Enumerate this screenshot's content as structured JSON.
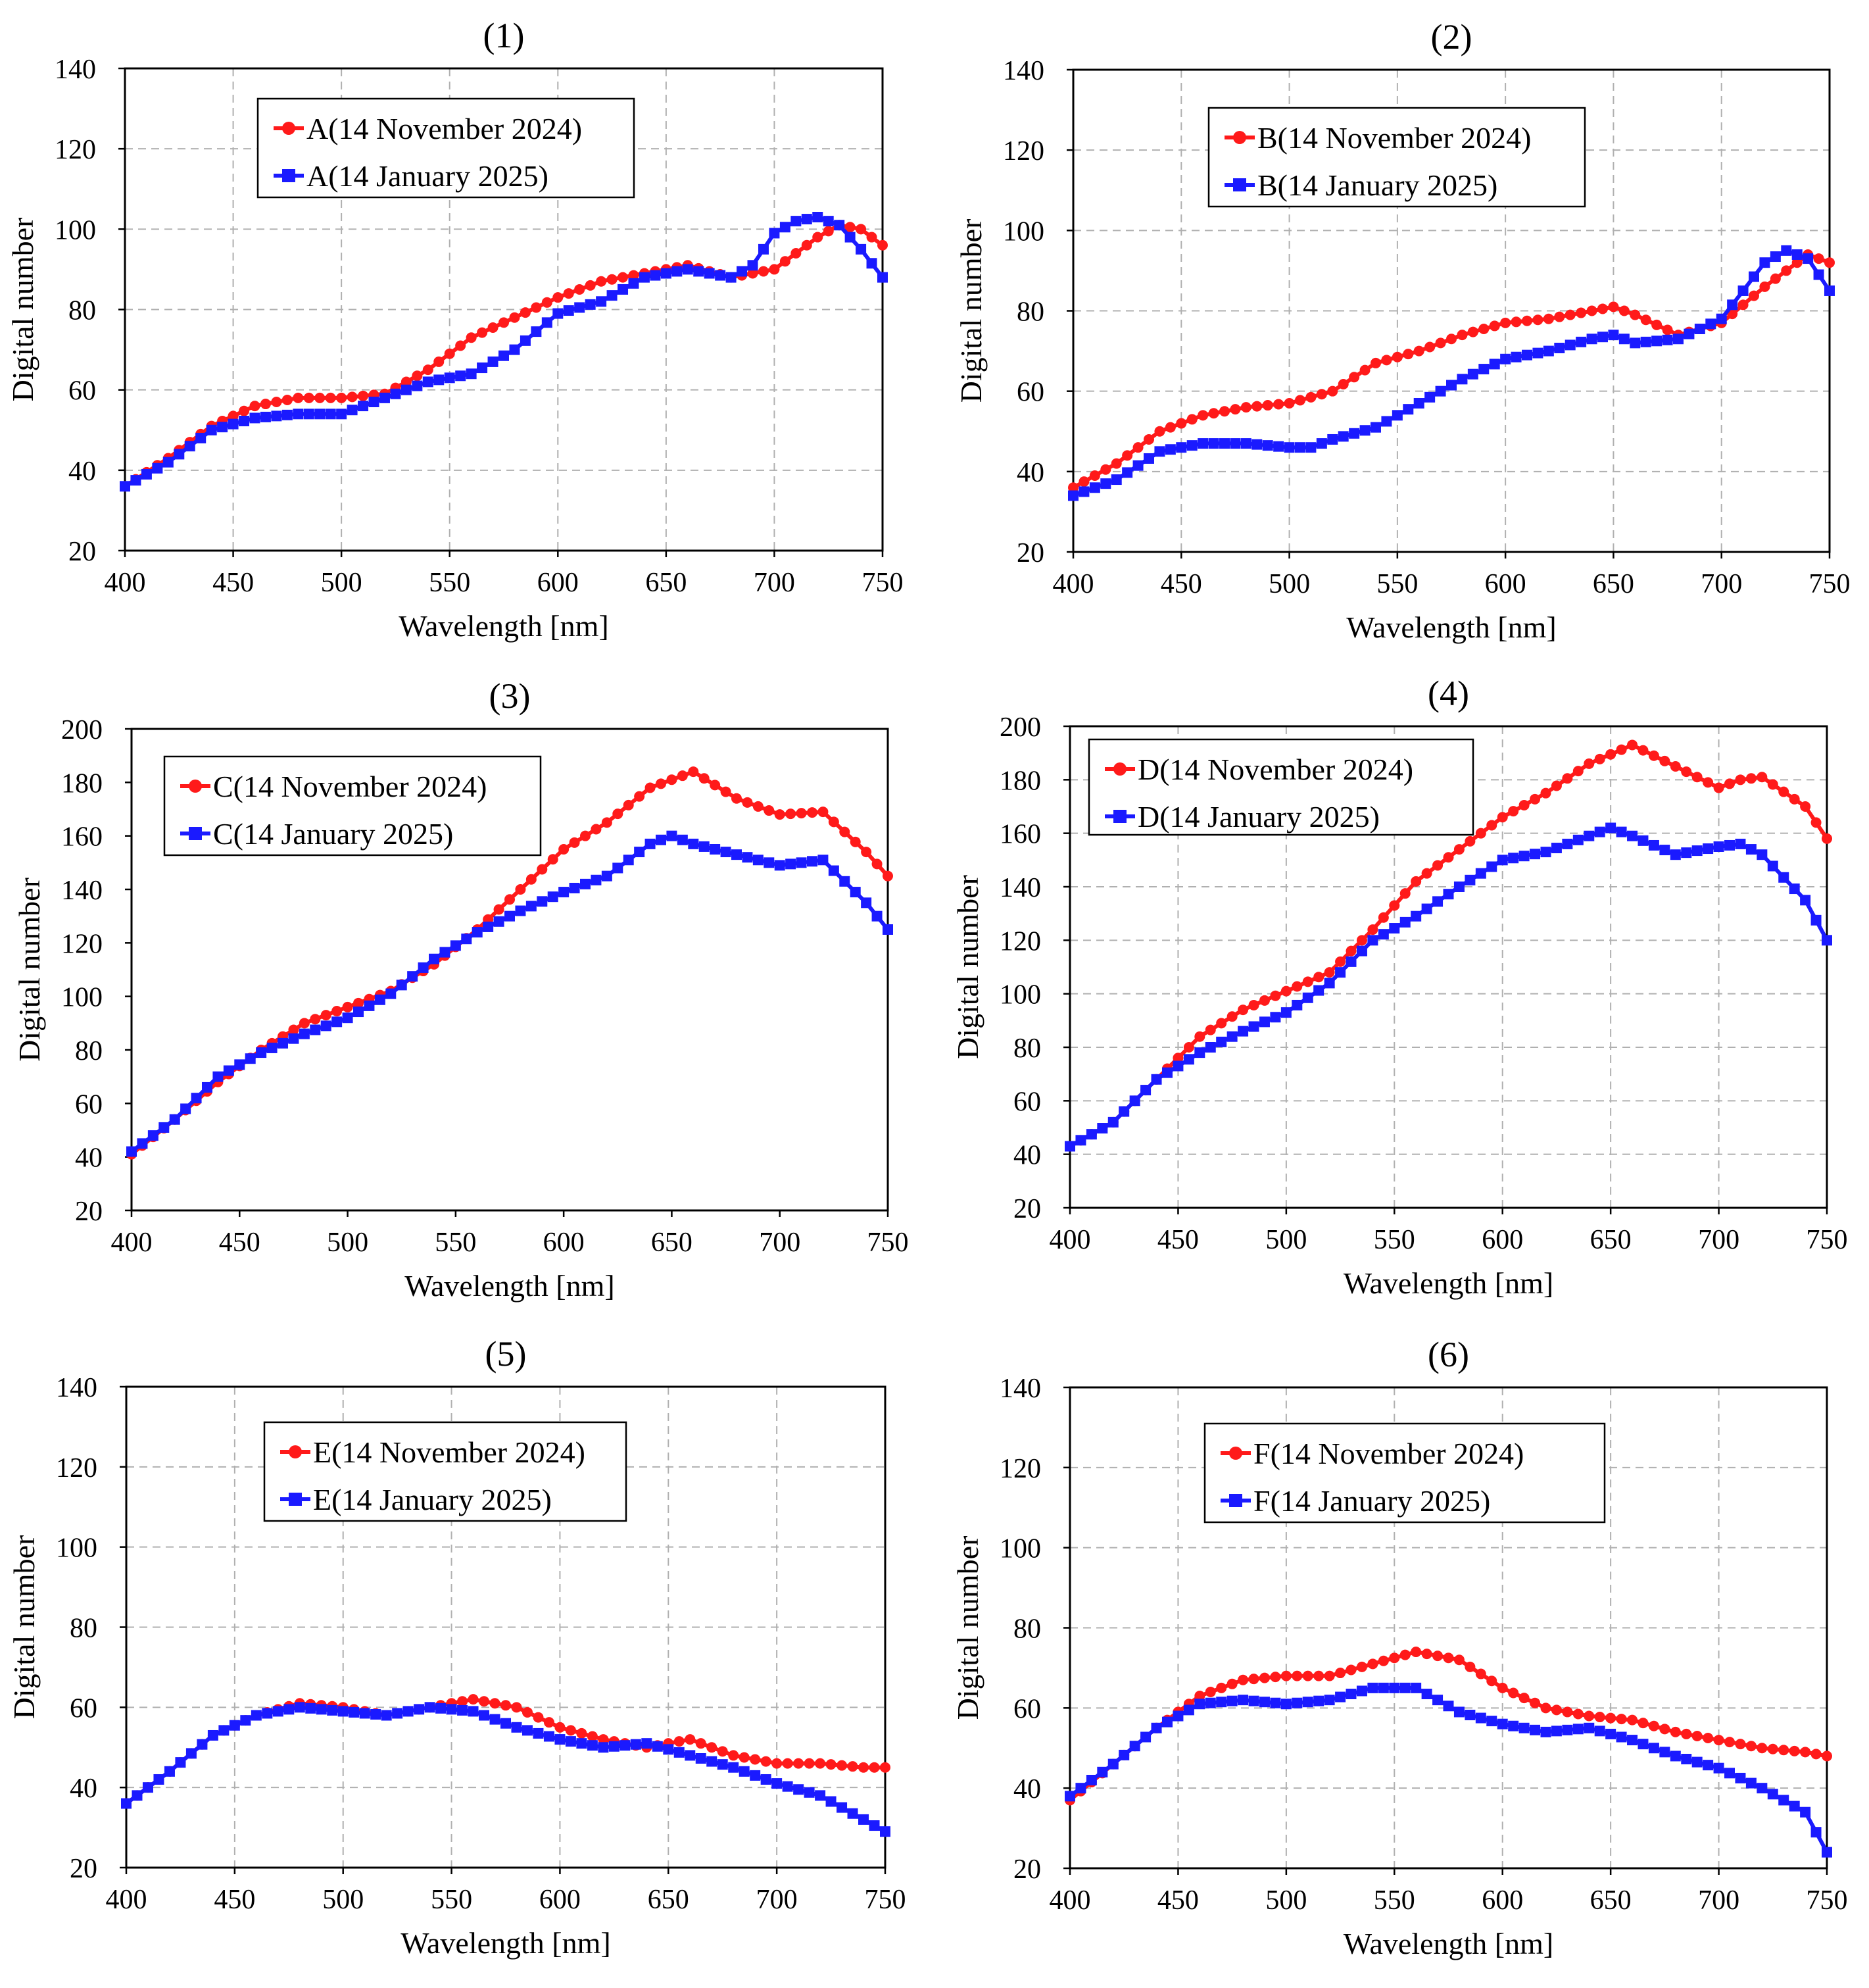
{
  "figure": {
    "description_x_unit": "nm",
    "series_names": [
      "14 November 2024",
      "14 January 2025"
    ]
  },
  "colors": {
    "november": "#ff1a1a",
    "january": "#1a1aff",
    "grid": "#b0b0b0"
  },
  "chart_data": [
    {
      "type": "line",
      "title": "(1)",
      "xlabel": "Wavelength [nm]",
      "ylabel": "Digital number",
      "xlim": [
        400,
        750
      ],
      "ylim": [
        20,
        140
      ],
      "xticks": [
        400,
        450,
        500,
        550,
        600,
        650,
        700,
        750
      ],
      "yticks": [
        20,
        40,
        60,
        80,
        100,
        120,
        140
      ],
      "grid": true,
      "legend_position": "top-left",
      "series": [
        {
          "name": "A(14 November 2024)",
          "marker": "circle",
          "color": "#ff1a1a",
          "x": [
            400,
            420,
            440,
            460,
            480,
            500,
            520,
            540,
            560,
            580,
            600,
            620,
            640,
            660,
            680,
            700,
            720,
            730,
            740,
            750
          ],
          "y": [
            36,
            43,
            51,
            56,
            58,
            58,
            59,
            65,
            73,
            78,
            83,
            87,
            89,
            91,
            88,
            90,
            98,
            101,
            100,
            96
          ]
        },
        {
          "name": "A(14 January 2025)",
          "marker": "square",
          "color": "#1a1aff",
          "x": [
            400,
            420,
            440,
            460,
            480,
            500,
            520,
            540,
            560,
            580,
            600,
            620,
            640,
            660,
            680,
            690,
            700,
            710,
            720,
            730,
            740,
            750
          ],
          "y": [
            36,
            42,
            50,
            53,
            54,
            54,
            58,
            62,
            64,
            70,
            79,
            82,
            88,
            90,
            88,
            91,
            99,
            102,
            103,
            101,
            95,
            88
          ]
        }
      ]
    },
    {
      "type": "line",
      "title": "(2)",
      "xlabel": "Wavelength [nm]",
      "ylabel": "Digital number",
      "xlim": [
        400,
        750
      ],
      "ylim": [
        20,
        140
      ],
      "xticks": [
        400,
        450,
        500,
        550,
        600,
        650,
        700,
        750
      ],
      "yticks": [
        20,
        40,
        60,
        80,
        100,
        120,
        140
      ],
      "grid": true,
      "legend_position": "top-center",
      "series": [
        {
          "name": "B(14 November 2024)",
          "marker": "circle",
          "color": "#ff1a1a",
          "x": [
            400,
            420,
            440,
            460,
            480,
            500,
            520,
            540,
            560,
            580,
            600,
            620,
            640,
            650,
            660,
            680,
            700,
            720,
            740,
            750
          ],
          "y": [
            36,
            42,
            50,
            54,
            56,
            57,
            60,
            67,
            70,
            74,
            77,
            78,
            80,
            81,
            79,
            74,
            77,
            86,
            94,
            92
          ]
        },
        {
          "name": "B(14 January 2025)",
          "marker": "square",
          "color": "#1a1aff",
          "x": [
            400,
            420,
            440,
            460,
            480,
            500,
            510,
            520,
            540,
            560,
            580,
            600,
            620,
            640,
            650,
            660,
            680,
            700,
            720,
            730,
            740,
            750
          ],
          "y": [
            34,
            38,
            45,
            47,
            47,
            46,
            46,
            48,
            51,
            57,
            63,
            68,
            70,
            73,
            74,
            72,
            73,
            78,
            92,
            95,
            93,
            85
          ]
        }
      ]
    },
    {
      "type": "line",
      "title": "(3)",
      "xlabel": "Wavelength [nm]",
      "ylabel": "Digital number",
      "xlim": [
        400,
        750
      ],
      "ylim": [
        20,
        200
      ],
      "xticks": [
        400,
        450,
        500,
        550,
        600,
        650,
        700,
        750
      ],
      "yticks": [
        20,
        40,
        60,
        80,
        100,
        120,
        140,
        160,
        180,
        200
      ],
      "grid": false,
      "legend_position": "top-left",
      "series": [
        {
          "name": "C(14 November 2024)",
          "marker": "circle",
          "color": "#ff1a1a",
          "x": [
            400,
            420,
            440,
            460,
            480,
            500,
            520,
            540,
            560,
            580,
            600,
            620,
            640,
            660,
            680,
            700,
            720,
            740,
            750
          ],
          "y": [
            41,
            54,
            68,
            80,
            90,
            96,
            102,
            112,
            125,
            140,
            155,
            165,
            178,
            184,
            174,
            168,
            169,
            154,
            145
          ]
        },
        {
          "name": "C(14 January 2025)",
          "marker": "square",
          "color": "#1a1aff",
          "x": [
            400,
            420,
            440,
            460,
            480,
            500,
            520,
            540,
            560,
            580,
            600,
            620,
            640,
            650,
            660,
            680,
            700,
            720,
            740,
            750
          ],
          "y": [
            42,
            54,
            70,
            79,
            86,
            92,
            101,
            114,
            124,
            132,
            139,
            145,
            157,
            160,
            157,
            153,
            149,
            151,
            135,
            125
          ]
        }
      ]
    },
    {
      "type": "line",
      "title": "(4)",
      "xlabel": "Wavelength [nm]",
      "ylabel": "Digital number",
      "xlim": [
        400,
        750
      ],
      "ylim": [
        20,
        200
      ],
      "xticks": [
        400,
        450,
        500,
        550,
        600,
        650,
        700,
        750
      ],
      "yticks": [
        20,
        40,
        60,
        80,
        100,
        120,
        140,
        160,
        180,
        200
      ],
      "grid": true,
      "legend_position": "top-left",
      "series": [
        {
          "name": "D(14 November 2024)",
          "marker": "circle",
          "color": "#ff1a1a",
          "x": [
            400,
            420,
            440,
            460,
            480,
            500,
            520,
            540,
            560,
            580,
            600,
            620,
            640,
            660,
            680,
            700,
            710,
            720,
            740,
            750
          ],
          "y": [
            43,
            52,
            68,
            84,
            94,
            101,
            108,
            124,
            142,
            154,
            166,
            175,
            186,
            193,
            185,
            177,
            180,
            181,
            170,
            158
          ]
        },
        {
          "name": "D(14 January 2025)",
          "marker": "square",
          "color": "#1a1aff",
          "x": [
            400,
            420,
            440,
            460,
            480,
            500,
            520,
            540,
            560,
            580,
            600,
            620,
            640,
            650,
            660,
            680,
            700,
            710,
            720,
            740,
            750
          ],
          "y": [
            43,
            52,
            68,
            78,
            86,
            93,
            104,
            120,
            129,
            140,
            150,
            153,
            159,
            162,
            159,
            152,
            155,
            156,
            152,
            135,
            120
          ]
        }
      ]
    },
    {
      "type": "line",
      "title": "(5)",
      "xlabel": "Wavelength [nm]",
      "ylabel": "Digital number",
      "xlim": [
        400,
        750
      ],
      "ylim": [
        20,
        140
      ],
      "xticks": [
        400,
        450,
        500,
        550,
        600,
        650,
        700,
        750
      ],
      "yticks": [
        20,
        40,
        60,
        80,
        100,
        120,
        140
      ],
      "grid": true,
      "legend_position": "top-center",
      "series": [
        {
          "name": "E(14 November 2024)",
          "marker": "circle",
          "color": "#ff1a1a",
          "x": [
            400,
            420,
            440,
            460,
            480,
            500,
            520,
            540,
            560,
            580,
            600,
            620,
            640,
            660,
            680,
            700,
            720,
            740,
            750
          ],
          "y": [
            36,
            44,
            53,
            58,
            61,
            60,
            58,
            60,
            62,
            60,
            55,
            52,
            50,
            52,
            48,
            46,
            46,
            45,
            45
          ]
        },
        {
          "name": "E(14 January 2025)",
          "marker": "square",
          "color": "#1a1aff",
          "x": [
            400,
            420,
            440,
            460,
            480,
            500,
            520,
            540,
            560,
            580,
            600,
            620,
            640,
            660,
            680,
            700,
            720,
            740,
            750
          ],
          "y": [
            36,
            44,
            53,
            58,
            60,
            59,
            58,
            60,
            59,
            55,
            52,
            50,
            51,
            48,
            45,
            41,
            38,
            32,
            29
          ]
        }
      ]
    },
    {
      "type": "line",
      "title": "(6)",
      "xlabel": "Wavelength [nm]",
      "ylabel": "Digital number",
      "xlim": [
        400,
        750
      ],
      "ylim": [
        20,
        140
      ],
      "xticks": [
        400,
        450,
        500,
        550,
        600,
        650,
        700,
        750
      ],
      "yticks": [
        20,
        40,
        60,
        80,
        100,
        120,
        140
      ],
      "grid": true,
      "legend_position": "top-center",
      "series": [
        {
          "name": "F(14 November 2024)",
          "marker": "circle",
          "color": "#ff1a1a",
          "x": [
            400,
            420,
            440,
            460,
            480,
            500,
            520,
            540,
            560,
            580,
            600,
            620,
            640,
            660,
            680,
            700,
            720,
            740,
            750
          ],
          "y": [
            37,
            46,
            55,
            63,
            67,
            68,
            68,
            71,
            74,
            72,
            65,
            60,
            58,
            57,
            54,
            52,
            50,
            49,
            48
          ]
        },
        {
          "name": "F(14 January 2025)",
          "marker": "square",
          "color": "#1a1aff",
          "x": [
            400,
            420,
            440,
            460,
            480,
            500,
            520,
            540,
            560,
            580,
            600,
            620,
            640,
            660,
            680,
            700,
            720,
            740,
            750
          ],
          "y": [
            38,
            46,
            55,
            61,
            62,
            61,
            62,
            65,
            65,
            59,
            56,
            54,
            55,
            52,
            48,
            45,
            40,
            34,
            24
          ]
        }
      ]
    }
  ]
}
